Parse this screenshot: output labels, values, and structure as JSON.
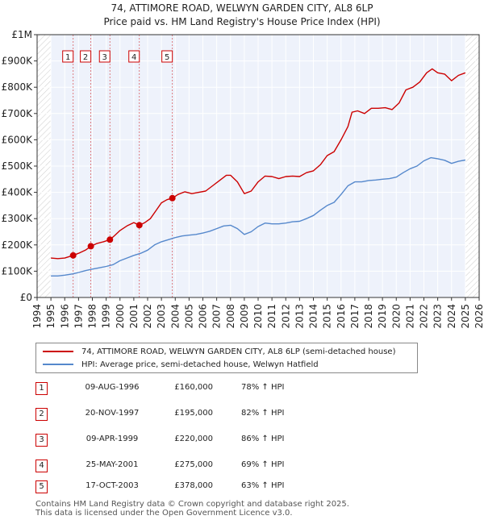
{
  "chart_data": {
    "type": "line",
    "title_lines": [
      "74, ATTIMORE ROAD, WELWYN GARDEN CITY, AL8 6LP",
      "Price paid vs. HM Land Registry's House Price Index (HPI)"
    ],
    "x_ticks": [
      1994,
      1995,
      1996,
      1997,
      1998,
      1999,
      2000,
      2001,
      2002,
      2003,
      2004,
      2005,
      2006,
      2007,
      2008,
      2009,
      2010,
      2011,
      2012,
      2013,
      2014,
      2015,
      2016,
      2017,
      2018,
      2019,
      2020,
      2021,
      2022,
      2023,
      2024,
      2025,
      2026
    ],
    "y_ticks": [
      {
        "value": 0,
        "label": "£0"
      },
      {
        "value": 100000,
        "label": "£100K"
      },
      {
        "value": 200000,
        "label": "£200K"
      },
      {
        "value": 300000,
        "label": "£300K"
      },
      {
        "value": 400000,
        "label": "£400K"
      },
      {
        "value": 500000,
        "label": "£500K"
      },
      {
        "value": 600000,
        "label": "£600K"
      },
      {
        "value": 700000,
        "label": "£700K"
      },
      {
        "value": 800000,
        "label": "£800K"
      },
      {
        "value": 900000,
        "label": "£900K"
      },
      {
        "value": 1000000,
        "label": "£1M"
      }
    ],
    "xlim": [
      1994,
      2026
    ],
    "ylim": [
      0,
      1000000
    ],
    "series": [
      {
        "name": "74, ATTIMORE ROAD, WELWYN GARDEN CITY, AL8 6LP (semi-detached house)",
        "color": "#cc0000",
        "points": [
          [
            1995.0,
            150000
          ],
          [
            1995.5,
            148000
          ],
          [
            1996.0,
            150000
          ],
          [
            1996.6,
            160000
          ],
          [
            1997.0,
            168000
          ],
          [
            1997.5,
            180000
          ],
          [
            1997.9,
            195000
          ],
          [
            1998.3,
            205000
          ],
          [
            1998.8,
            212000
          ],
          [
            1999.27,
            220000
          ],
          [
            1999.6,
            235000
          ],
          [
            2000.0,
            255000
          ],
          [
            2000.5,
            272000
          ],
          [
            2001.0,
            285000
          ],
          [
            2001.4,
            275000
          ],
          [
            2001.8,
            285000
          ],
          [
            2002.2,
            300000
          ],
          [
            2002.6,
            330000
          ],
          [
            2003.0,
            360000
          ],
          [
            2003.4,
            372000
          ],
          [
            2003.8,
            378000
          ],
          [
            2004.2,
            392000
          ],
          [
            2004.7,
            402000
          ],
          [
            2005.2,
            395000
          ],
          [
            2005.7,
            400000
          ],
          [
            2006.2,
            405000
          ],
          [
            2006.7,
            425000
          ],
          [
            2007.2,
            445000
          ],
          [
            2007.7,
            465000
          ],
          [
            2008.0,
            465000
          ],
          [
            2008.5,
            440000
          ],
          [
            2009.0,
            395000
          ],
          [
            2009.5,
            405000
          ],
          [
            2010.0,
            440000
          ],
          [
            2010.5,
            462000
          ],
          [
            2011.0,
            460000
          ],
          [
            2011.5,
            452000
          ],
          [
            2012.0,
            460000
          ],
          [
            2012.5,
            462000
          ],
          [
            2013.0,
            460000
          ],
          [
            2013.5,
            475000
          ],
          [
            2014.0,
            482000
          ],
          [
            2014.5,
            505000
          ],
          [
            2015.0,
            540000
          ],
          [
            2015.5,
            555000
          ],
          [
            2016.0,
            600000
          ],
          [
            2016.5,
            650000
          ],
          [
            2016.8,
            705000
          ],
          [
            2017.2,
            710000
          ],
          [
            2017.7,
            700000
          ],
          [
            2018.2,
            720000
          ],
          [
            2018.7,
            720000
          ],
          [
            2019.2,
            722000
          ],
          [
            2019.7,
            715000
          ],
          [
            2020.2,
            740000
          ],
          [
            2020.7,
            790000
          ],
          [
            2021.2,
            800000
          ],
          [
            2021.7,
            820000
          ],
          [
            2022.2,
            855000
          ],
          [
            2022.6,
            870000
          ],
          [
            2023.0,
            855000
          ],
          [
            2023.5,
            850000
          ],
          [
            2024.0,
            825000
          ],
          [
            2024.5,
            845000
          ],
          [
            2025.0,
            855000
          ]
        ]
      },
      {
        "name": "HPI: Average price, semi-detached house, Welwyn Hatfield",
        "color": "#5588cc",
        "points": [
          [
            1995.0,
            82000
          ],
          [
            1995.5,
            82000
          ],
          [
            1996.0,
            85000
          ],
          [
            1996.6,
            90000
          ],
          [
            1997.0,
            95000
          ],
          [
            1997.5,
            102000
          ],
          [
            1998.0,
            108000
          ],
          [
            1998.5,
            113000
          ],
          [
            1999.0,
            118000
          ],
          [
            1999.5,
            125000
          ],
          [
            2000.0,
            140000
          ],
          [
            2000.5,
            150000
          ],
          [
            2001.0,
            160000
          ],
          [
            2001.5,
            168000
          ],
          [
            2002.0,
            180000
          ],
          [
            2002.5,
            200000
          ],
          [
            2003.0,
            212000
          ],
          [
            2003.5,
            220000
          ],
          [
            2004.0,
            228000
          ],
          [
            2004.5,
            234000
          ],
          [
            2005.0,
            237000
          ],
          [
            2005.5,
            240000
          ],
          [
            2006.0,
            245000
          ],
          [
            2006.5,
            252000
          ],
          [
            2007.0,
            262000
          ],
          [
            2007.5,
            272000
          ],
          [
            2008.0,
            275000
          ],
          [
            2008.5,
            262000
          ],
          [
            2009.0,
            240000
          ],
          [
            2009.5,
            250000
          ],
          [
            2010.0,
            270000
          ],
          [
            2010.5,
            283000
          ],
          [
            2011.0,
            280000
          ],
          [
            2011.5,
            280000
          ],
          [
            2012.0,
            283000
          ],
          [
            2012.5,
            288000
          ],
          [
            2013.0,
            290000
          ],
          [
            2013.5,
            300000
          ],
          [
            2014.0,
            312000
          ],
          [
            2014.5,
            332000
          ],
          [
            2015.0,
            350000
          ],
          [
            2015.5,
            362000
          ],
          [
            2016.0,
            392000
          ],
          [
            2016.5,
            425000
          ],
          [
            2017.0,
            440000
          ],
          [
            2017.5,
            440000
          ],
          [
            2018.0,
            445000
          ],
          [
            2018.5,
            447000
          ],
          [
            2019.0,
            450000
          ],
          [
            2019.5,
            452000
          ],
          [
            2020.0,
            458000
          ],
          [
            2020.5,
            475000
          ],
          [
            2021.0,
            490000
          ],
          [
            2021.5,
            500000
          ],
          [
            2022.0,
            520000
          ],
          [
            2022.5,
            532000
          ],
          [
            2023.0,
            528000
          ],
          [
            2023.5,
            522000
          ],
          [
            2024.0,
            510000
          ],
          [
            2024.5,
            518000
          ],
          [
            2025.0,
            523000
          ]
        ]
      }
    ],
    "sales": [
      {
        "num": "1",
        "year": 1996.61,
        "price": 160000,
        "date": "09-AUG-1996",
        "price_label": "£160,000",
        "hpi": "78% ↑ HPI"
      },
      {
        "num": "2",
        "year": 1997.89,
        "price": 195000,
        "date": "20-NOV-1997",
        "price_label": "£195,000",
        "hpi": "82% ↑ HPI"
      },
      {
        "num": "3",
        "year": 1999.27,
        "price": 220000,
        "date": "09-APR-1999",
        "price_label": "£220,000",
        "hpi": "86% ↑ HPI"
      },
      {
        "num": "4",
        "year": 2001.4,
        "price": 275000,
        "date": "25-MAY-2001",
        "price_label": "£275,000",
        "hpi": "69% ↑ HPI"
      },
      {
        "num": "5",
        "year": 2003.79,
        "price": 378000,
        "date": "17-OCT-2003",
        "price_label": "£378,000",
        "hpi": "63% ↑ HPI"
      }
    ],
    "shaded_spans": [
      [
        1994.0,
        1995.0
      ],
      [
        2025.0,
        2026.0
      ]
    ],
    "legend": {
      "property": "74, ATTIMORE ROAD, WELWYN GARDEN CITY, AL8 6LP (semi-detached house)",
      "hpi": "HPI: Average price, semi-detached house, Welwyn Hatfield"
    }
  },
  "footer": {
    "line1": "Contains HM Land Registry data © Crown copyright and database right 2025.",
    "line2": "This data is licensed under the Open Government Licence v3.0."
  },
  "colors": {
    "property": "#cc0000",
    "hpi": "#5588cc",
    "plot_bg": "#eef2fb",
    "hatch": "#cccccc",
    "grid": "#ffffff"
  }
}
